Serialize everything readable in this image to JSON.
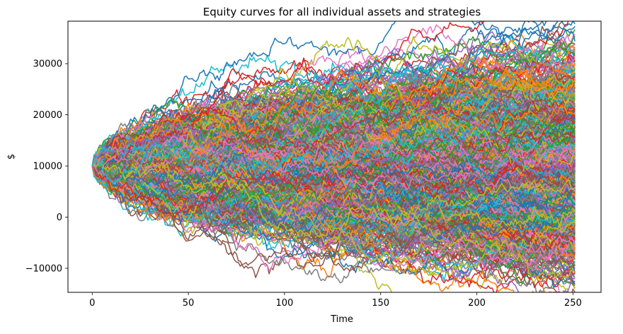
{
  "chart_data": {
    "type": "line",
    "title": "Equity curves for all individual assets and strategies",
    "xlabel": "Time",
    "ylabel": "$",
    "xlim": [
      -12.6,
      264.6
    ],
    "ylim": [
      -14700,
      38300
    ],
    "x_ticks": [
      0,
      50,
      100,
      150,
      200,
      250
    ],
    "x_tick_labels": [
      "0",
      "50",
      "100",
      "150",
      "200",
      "250"
    ],
    "y_ticks": [
      -10000,
      0,
      10000,
      20000,
      30000
    ],
    "y_tick_labels": [
      "−10000",
      "0",
      "10000",
      "20000",
      "30000"
    ],
    "grid": false,
    "legend": "none",
    "series_count": 1000,
    "n_points": 252,
    "x_start": 0,
    "x_end": 251,
    "start_value": 10000,
    "final_value_range": [
      -10500,
      33500
    ],
    "peak_value": 35500,
    "trough_value": -12000,
    "palette": [
      "#1f77b4",
      "#ff7f0e",
      "#2ca02c",
      "#d62728",
      "#9467bd",
      "#8c564b",
      "#e377c2",
      "#7f7f7f",
      "#bcbd22",
      "#17becf"
    ]
  }
}
